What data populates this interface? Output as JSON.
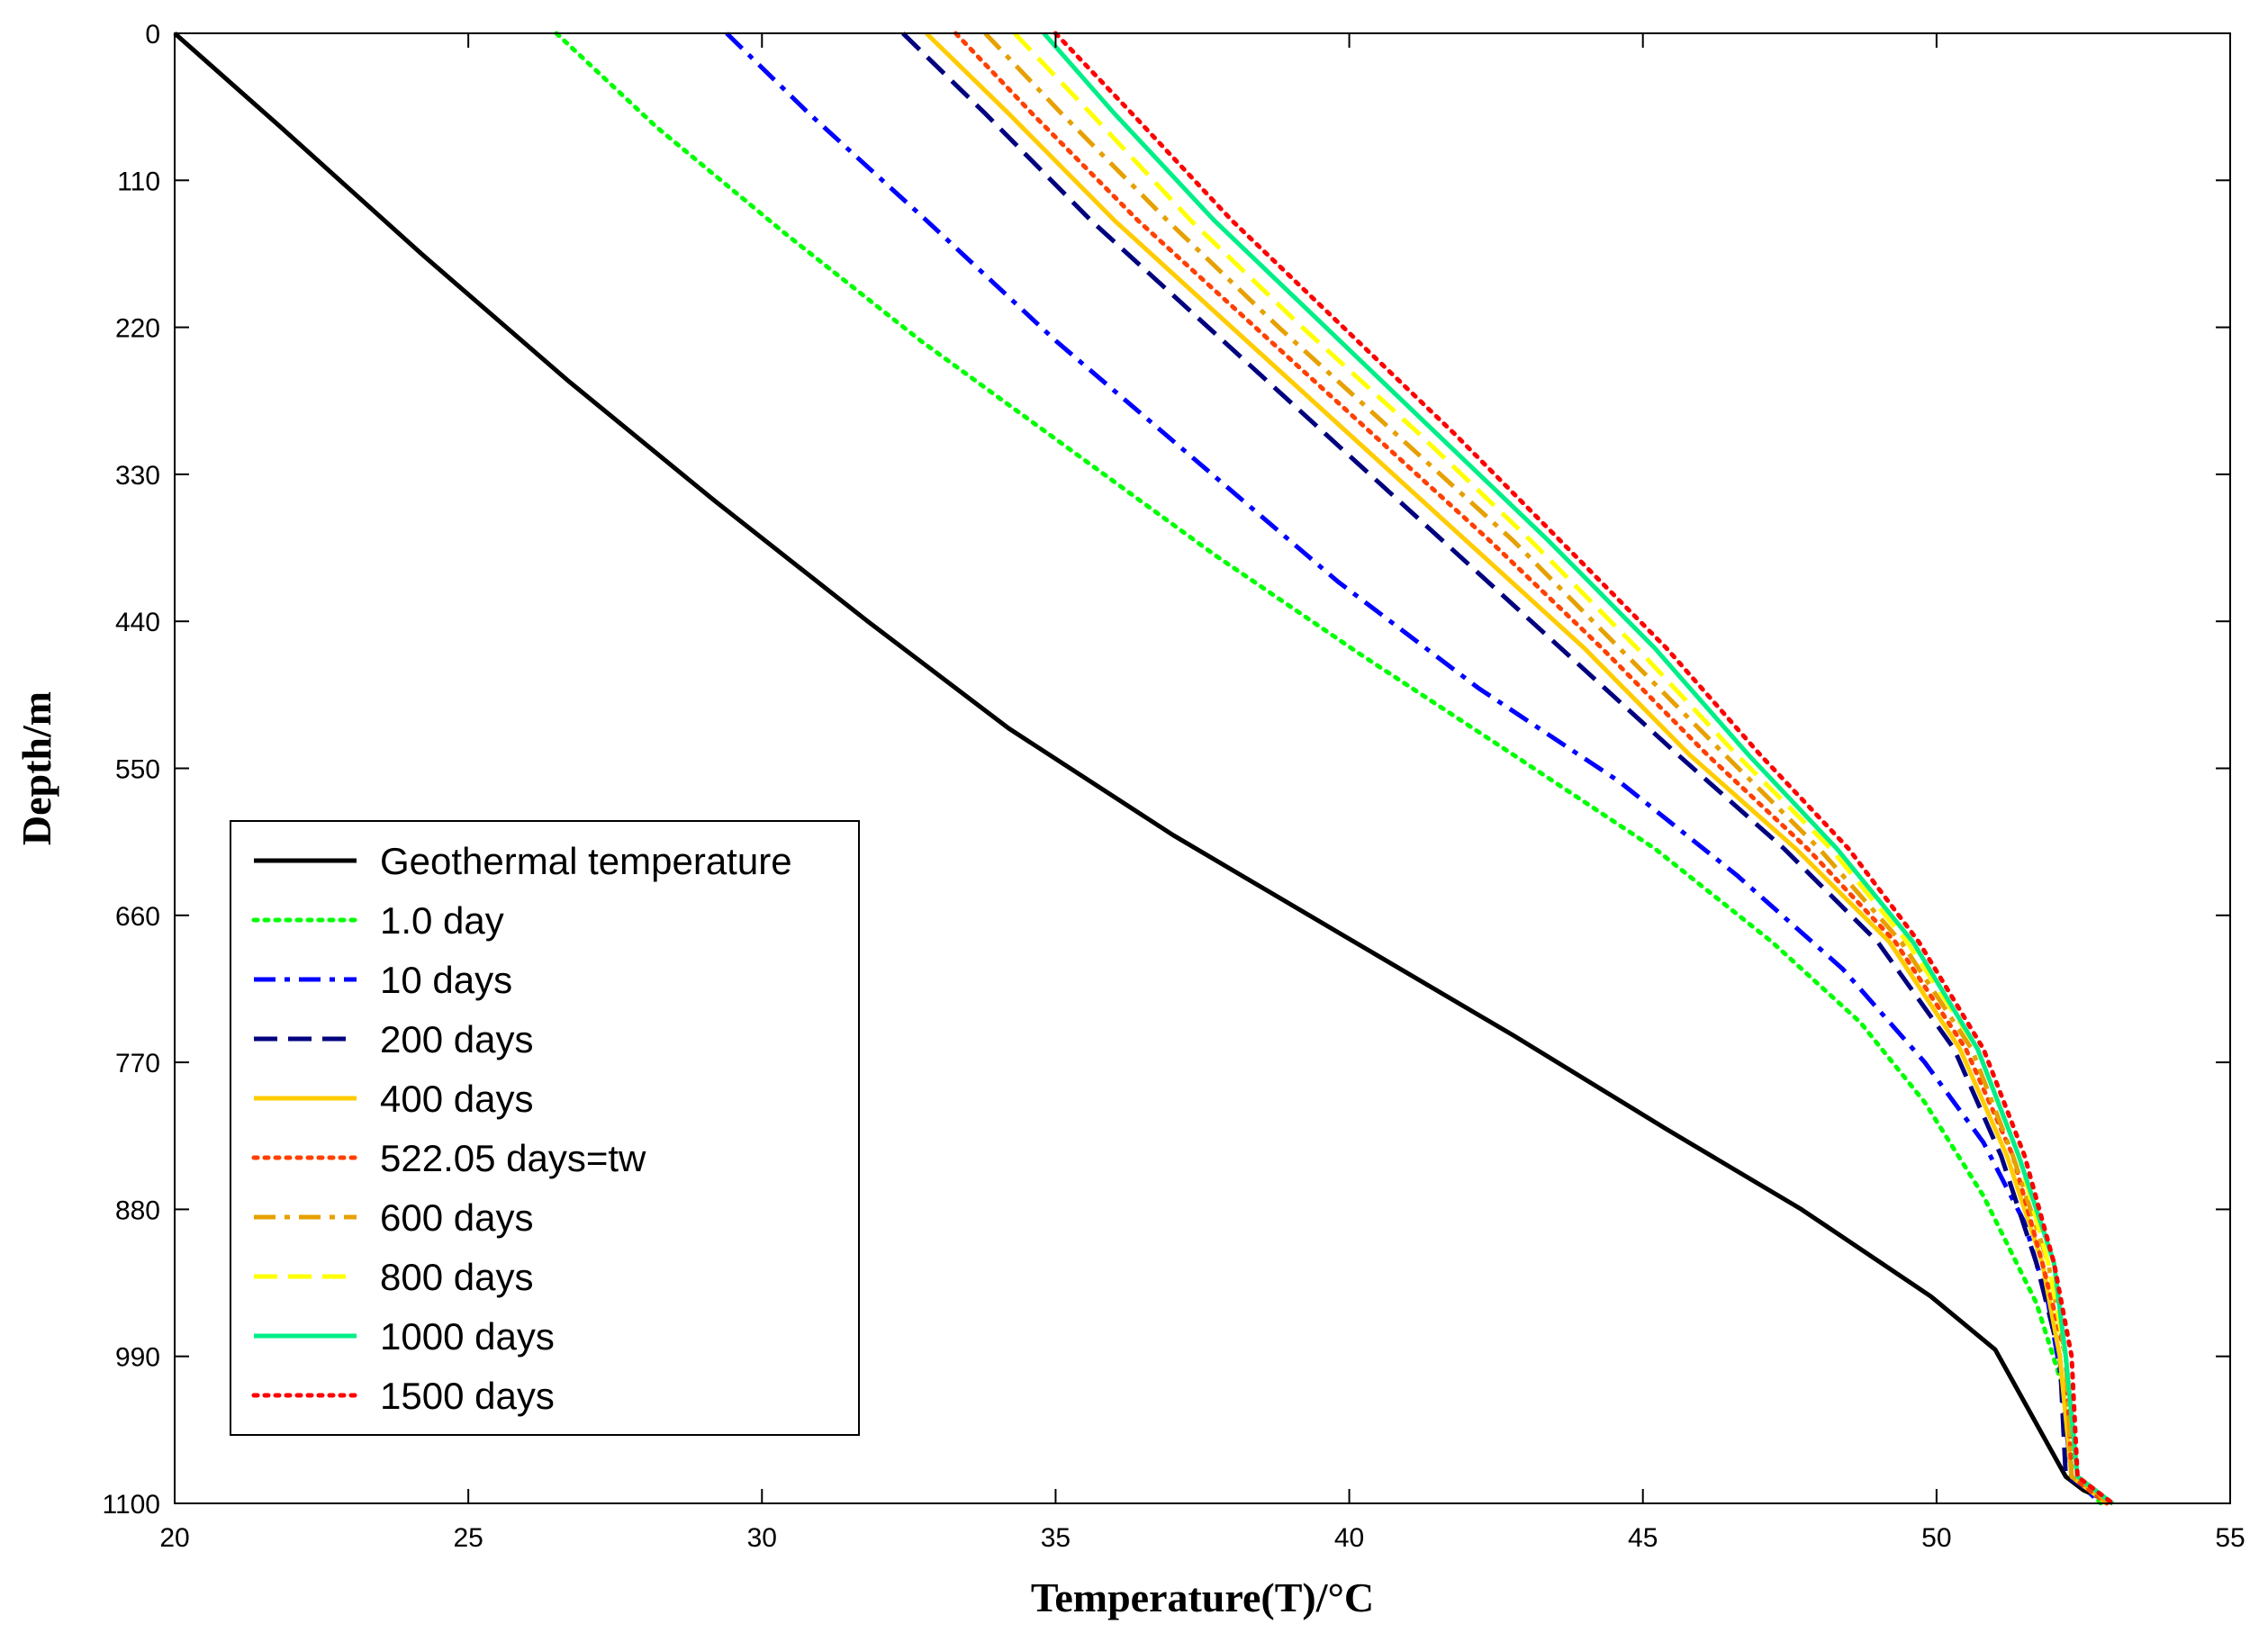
{
  "chart_data": {
    "type": "line",
    "title": "",
    "xlabel": "Temperature(T)/°C",
    "ylabel": "Depth/m",
    "xlim": [
      20,
      55
    ],
    "ylim": [
      0,
      1100
    ],
    "y_inverted": true,
    "xticks": [
      20,
      25,
      30,
      35,
      40,
      45,
      50,
      55
    ],
    "yticks": [
      0,
      110,
      220,
      330,
      440,
      550,
      660,
      770,
      880,
      990,
      1100
    ],
    "grid": false,
    "legend_position": "lower-left",
    "series": [
      {
        "name": "Geothermal temperature",
        "color": "#000000",
        "style": "solid",
        "points": [
          [
            20.0,
            0
          ],
          [
            21.8,
            70
          ],
          [
            24.2,
            165
          ],
          [
            26.7,
            260
          ],
          [
            29.2,
            350
          ],
          [
            31.8,
            440
          ],
          [
            34.2,
            520
          ],
          [
            37.0,
            600
          ],
          [
            39.9,
            675
          ],
          [
            42.8,
            750
          ],
          [
            45.4,
            820
          ],
          [
            47.7,
            880
          ],
          [
            49.9,
            945
          ],
          [
            51.0,
            985
          ],
          [
            52.2,
            1080
          ],
          [
            52.5,
            1090
          ],
          [
            53.0,
            1100
          ]
        ]
      },
      {
        "name": "1.0 day",
        "color": "#00ff00",
        "style": "dotted",
        "points": [
          [
            26.5,
            0
          ],
          [
            28.2,
            70
          ],
          [
            30.4,
            150
          ],
          [
            32.7,
            230
          ],
          [
            35.2,
            310
          ],
          [
            37.7,
            390
          ],
          [
            40.2,
            465
          ],
          [
            42.8,
            540
          ],
          [
            45.2,
            610
          ],
          [
            47.2,
            680
          ],
          [
            48.7,
            740
          ],
          [
            49.8,
            800
          ],
          [
            50.8,
            870
          ],
          [
            51.7,
            950
          ],
          [
            52.2,
            1020
          ],
          [
            52.4,
            1080
          ],
          [
            52.8,
            1100
          ]
        ]
      },
      {
        "name": "10 days",
        "color": "#0000ff",
        "style": "dashdot",
        "points": [
          [
            29.4,
            0
          ],
          [
            30.8,
            60
          ],
          [
            32.8,
            140
          ],
          [
            35.0,
            230
          ],
          [
            37.4,
            320
          ],
          [
            39.8,
            410
          ],
          [
            42.2,
            490
          ],
          [
            44.6,
            560
          ],
          [
            46.6,
            630
          ],
          [
            48.4,
            700
          ],
          [
            49.8,
            770
          ],
          [
            50.8,
            830
          ],
          [
            51.5,
            890
          ],
          [
            51.9,
            950
          ],
          [
            52.1,
            1000
          ],
          [
            52.3,
            1080
          ],
          [
            52.8,
            1100
          ]
        ]
      },
      {
        "name": "200 days",
        "color": "#00007f",
        "style": "dashed",
        "points": [
          [
            32.4,
            0
          ],
          [
            33.8,
            60
          ],
          [
            35.6,
            140
          ],
          [
            37.6,
            220
          ],
          [
            39.6,
            300
          ],
          [
            41.6,
            380
          ],
          [
            43.6,
            460
          ],
          [
            45.6,
            540
          ],
          [
            47.4,
            610
          ],
          [
            49.0,
            680
          ],
          [
            50.3,
            760
          ],
          [
            51.1,
            840
          ],
          [
            51.7,
            920
          ],
          [
            52.1,
            990
          ],
          [
            52.2,
            1080
          ],
          [
            52.6,
            1090
          ],
          [
            52.9,
            1100
          ]
        ]
      },
      {
        "name": "400 days",
        "color": "#ffcc00",
        "style": "solid",
        "points": [
          [
            32.8,
            0
          ],
          [
            34.2,
            60
          ],
          [
            36.0,
            140
          ],
          [
            38.0,
            220
          ],
          [
            40.0,
            300
          ],
          [
            42.0,
            380
          ],
          [
            44.0,
            460
          ],
          [
            45.8,
            540
          ],
          [
            47.6,
            610
          ],
          [
            49.2,
            680
          ],
          [
            50.4,
            760
          ],
          [
            51.2,
            840
          ],
          [
            51.8,
            920
          ],
          [
            52.1,
            990
          ],
          [
            52.3,
            1080
          ],
          [
            52.6,
            1090
          ],
          [
            52.9,
            1100
          ]
        ]
      },
      {
        "name": "522.05 days=tw",
        "color": "#ff4000",
        "style": "dotted",
        "points": [
          [
            33.3,
            0
          ],
          [
            34.6,
            60
          ],
          [
            36.4,
            140
          ],
          [
            38.4,
            220
          ],
          [
            40.4,
            300
          ],
          [
            42.4,
            380
          ],
          [
            44.3,
            460
          ],
          [
            46.1,
            540
          ],
          [
            47.8,
            610
          ],
          [
            49.3,
            680
          ],
          [
            50.5,
            760
          ],
          [
            51.3,
            840
          ],
          [
            51.8,
            920
          ],
          [
            52.2,
            990
          ],
          [
            52.3,
            1080
          ],
          [
            52.6,
            1090
          ],
          [
            52.9,
            1100
          ]
        ]
      },
      {
        "name": "600 days",
        "color": "#e6a000",
        "style": "dashdot",
        "points": [
          [
            33.8,
            0
          ],
          [
            35.1,
            60
          ],
          [
            36.9,
            140
          ],
          [
            38.8,
            220
          ],
          [
            40.8,
            300
          ],
          [
            42.8,
            380
          ],
          [
            44.6,
            460
          ],
          [
            46.4,
            540
          ],
          [
            48.0,
            610
          ],
          [
            49.4,
            680
          ],
          [
            50.6,
            760
          ],
          [
            51.3,
            840
          ],
          [
            51.9,
            920
          ],
          [
            52.2,
            990
          ],
          [
            52.3,
            1080
          ],
          [
            52.7,
            1090
          ],
          [
            52.9,
            1100
          ]
        ]
      },
      {
        "name": "800 days",
        "color": "#ffff00",
        "style": "dashed",
        "points": [
          [
            34.3,
            0
          ],
          [
            35.6,
            60
          ],
          [
            37.3,
            140
          ],
          [
            39.2,
            220
          ],
          [
            41.2,
            300
          ],
          [
            43.1,
            380
          ],
          [
            44.9,
            460
          ],
          [
            46.6,
            540
          ],
          [
            48.2,
            610
          ],
          [
            49.5,
            680
          ],
          [
            50.7,
            760
          ],
          [
            51.4,
            840
          ],
          [
            51.9,
            920
          ],
          [
            52.2,
            990
          ],
          [
            52.4,
            1080
          ],
          [
            52.7,
            1090
          ],
          [
            53.0,
            1100
          ]
        ]
      },
      {
        "name": "1000 days",
        "color": "#00ee88",
        "style": "solid",
        "points": [
          [
            34.8,
            0
          ],
          [
            36.0,
            60
          ],
          [
            37.7,
            140
          ],
          [
            39.6,
            220
          ],
          [
            41.5,
            300
          ],
          [
            43.4,
            380
          ],
          [
            45.2,
            460
          ],
          [
            46.8,
            540
          ],
          [
            48.3,
            610
          ],
          [
            49.6,
            680
          ],
          [
            50.7,
            760
          ],
          [
            51.4,
            840
          ],
          [
            52.0,
            920
          ],
          [
            52.2,
            990
          ],
          [
            52.4,
            1080
          ],
          [
            52.7,
            1090
          ],
          [
            53.0,
            1100
          ]
        ]
      },
      {
        "name": "1500 days",
        "color": "#ff0000",
        "style": "dotted",
        "points": [
          [
            35.0,
            0
          ],
          [
            36.3,
            60
          ],
          [
            38.0,
            140
          ],
          [
            39.9,
            220
          ],
          [
            41.8,
            300
          ],
          [
            43.6,
            380
          ],
          [
            45.4,
            460
          ],
          [
            47.0,
            540
          ],
          [
            48.5,
            610
          ],
          [
            49.7,
            680
          ],
          [
            50.8,
            760
          ],
          [
            51.5,
            840
          ],
          [
            52.0,
            920
          ],
          [
            52.3,
            990
          ],
          [
            52.4,
            1080
          ],
          [
            52.7,
            1090
          ],
          [
            53.0,
            1100
          ]
        ]
      }
    ]
  }
}
